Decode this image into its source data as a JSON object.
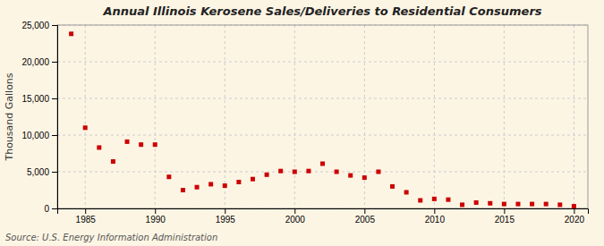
{
  "chart_data": {
    "type": "scatter",
    "title": "Annual Illinois Kerosene Sales/Deliveries to Residential Consumers",
    "ylabel": "Thousand Gallons",
    "annotations": [
      "Source: U.S. Energy Information Administration"
    ],
    "color": "#cc0000",
    "marker": "square",
    "grid": true,
    "xlim": [
      1983,
      2021
    ],
    "ylim": [
      0,
      25000
    ],
    "xticks": [
      1985,
      1990,
      1995,
      2000,
      2005,
      2010,
      2015,
      2020
    ],
    "yticks": [
      0,
      {
        "value": 5000,
        "label": "5,000"
      },
      {
        "value": 10000,
        "label": "10,000"
      },
      {
        "value": 15000,
        "label": "15,000"
      },
      {
        "value": 20000,
        "label": "20,000"
      },
      {
        "value": 25000,
        "label": "25,000"
      }
    ],
    "x": [
      1984,
      1985,
      1986,
      1987,
      1988,
      1989,
      1990,
      1991,
      1992,
      1993,
      1994,
      1995,
      1996,
      1997,
      1998,
      1999,
      2000,
      2001,
      2002,
      2003,
      2004,
      2005,
      2006,
      2007,
      2008,
      2009,
      2010,
      2011,
      2012,
      2013,
      2014,
      2015,
      2016,
      2017,
      2018,
      2019,
      2020
    ],
    "values": [
      23800,
      11000,
      8300,
      6400,
      9100,
      8700,
      8700,
      4300,
      2500,
      2900,
      3300,
      3100,
      3600,
      4000,
      4600,
      5100,
      5000,
      5100,
      6100,
      5000,
      4500,
      4200,
      5000,
      3000,
      2200,
      1100,
      1300,
      1200,
      500,
      800,
      700,
      600,
      600,
      600,
      600,
      500,
      300
    ]
  }
}
